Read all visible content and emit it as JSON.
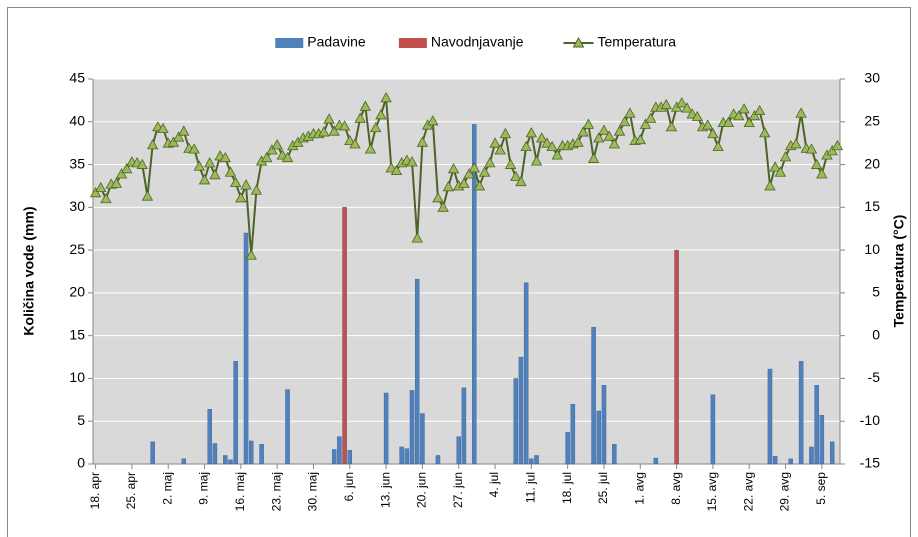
{
  "chart_data": {
    "type": "bar",
    "categories": [
      "18. apr",
      null,
      null,
      null,
      null,
      null,
      null,
      "25. apr",
      null,
      null,
      null,
      null,
      null,
      null,
      "2. maj",
      null,
      null,
      null,
      null,
      null,
      null,
      "9. maj",
      null,
      null,
      null,
      null,
      null,
      null,
      "16. maj",
      null,
      null,
      null,
      null,
      null,
      null,
      "23. maj",
      null,
      null,
      null,
      null,
      null,
      null,
      "30. maj",
      null,
      null,
      null,
      null,
      null,
      null,
      "6. jun",
      null,
      null,
      null,
      null,
      null,
      null,
      "13. jun",
      null,
      null,
      null,
      null,
      null,
      null,
      "20. jun",
      null,
      null,
      null,
      null,
      null,
      null,
      "27. jun",
      null,
      null,
      null,
      null,
      null,
      null,
      "4. jul",
      null,
      null,
      null,
      null,
      null,
      null,
      "11. jul",
      null,
      null,
      null,
      null,
      null,
      null,
      "18. jul",
      null,
      null,
      null,
      null,
      null,
      null,
      "25. jul",
      null,
      null,
      null,
      null,
      null,
      null,
      "1. avg",
      null,
      null,
      null,
      null,
      null,
      null,
      "8. avg",
      null,
      null,
      null,
      null,
      null,
      null,
      "15. avg",
      null,
      null,
      null,
      null,
      null,
      null,
      "22. avg",
      null,
      null,
      null,
      null,
      null,
      null,
      "29. avg",
      null,
      null,
      null,
      null,
      null,
      null,
      "5. sep",
      null,
      null,
      null
    ],
    "series": [
      {
        "name": "Padavine",
        "type": "bar",
        "color": "#4f81bd",
        "values": [
          null,
          null,
          null,
          null,
          null,
          null,
          null,
          null,
          null,
          null,
          null,
          2.6,
          null,
          null,
          null,
          null,
          null,
          0.6,
          null,
          null,
          null,
          null,
          6.4,
          2.4,
          null,
          1.0,
          0.5,
          12,
          null,
          27,
          2.7,
          null,
          2.3,
          null,
          null,
          null,
          null,
          8.7,
          null,
          null,
          null,
          null,
          null,
          null,
          null,
          null,
          1.7,
          3.2,
          null,
          1.6,
          null,
          null,
          null,
          null,
          null,
          null,
          8.3,
          null,
          null,
          2.0,
          1.8,
          8.6,
          21.6,
          5.9,
          null,
          null,
          1.0,
          null,
          null,
          null,
          3.2,
          8.9,
          null,
          39.7,
          null,
          null,
          null,
          null,
          null,
          null,
          null,
          10,
          12.5,
          21.2,
          0.6,
          1.0,
          null,
          null,
          null,
          null,
          null,
          3.7,
          7.0,
          null,
          null,
          null,
          16,
          6.2,
          9.2,
          null,
          2.3,
          null,
          null,
          null,
          null,
          null,
          null,
          null,
          0.7,
          null,
          null,
          null,
          null,
          null,
          null,
          null,
          null,
          null,
          null,
          8.1,
          null,
          null,
          null,
          null,
          null,
          null,
          null,
          null,
          null,
          null,
          11.1,
          0.9,
          null,
          null,
          0.6,
          null,
          12,
          null,
          2.0,
          9.2,
          5.7,
          null,
          2.6,
          null
        ]
      },
      {
        "name": "Navodnjavanje",
        "type": "bar",
        "color": "#c0504d",
        "values": [
          null,
          null,
          null,
          null,
          null,
          null,
          null,
          null,
          null,
          null,
          null,
          null,
          null,
          null,
          null,
          null,
          null,
          null,
          null,
          null,
          null,
          null,
          null,
          null,
          null,
          null,
          null,
          null,
          null,
          null,
          null,
          null,
          null,
          null,
          null,
          null,
          null,
          null,
          null,
          null,
          null,
          null,
          null,
          null,
          null,
          null,
          null,
          null,
          30,
          null,
          null,
          null,
          null,
          null,
          null,
          null,
          null,
          null,
          null,
          null,
          null,
          null,
          null,
          null,
          null,
          null,
          null,
          null,
          null,
          null,
          null,
          null,
          null,
          null,
          null,
          null,
          null,
          null,
          null,
          null,
          null,
          null,
          null,
          null,
          null,
          null,
          null,
          null,
          null,
          null,
          null,
          null,
          null,
          null,
          null,
          null,
          null,
          null,
          null,
          null,
          null,
          null,
          null,
          null,
          null,
          null,
          null,
          null,
          null,
          null,
          null,
          null,
          25,
          null,
          null,
          null,
          null,
          null,
          null,
          null,
          null,
          null,
          null,
          null,
          null,
          null,
          null,
          null,
          null,
          null,
          null,
          null,
          null,
          null,
          null,
          null,
          null,
          null,
          null,
          null,
          null,
          null,
          null,
          null
        ]
      },
      {
        "name": "Temperatura",
        "type": "line",
        "axis": "y2",
        "color": "#4f6228",
        "marker_color": "#9bbb59",
        "values": [
          16.7,
          17.3,
          16,
          17.7,
          17.8,
          18.9,
          19.5,
          20.3,
          20.2,
          20,
          16.3,
          22.3,
          24.4,
          24.2,
          22.5,
          22.6,
          23.2,
          23.9,
          21.9,
          21.8,
          19.8,
          18.2,
          20.2,
          18.8,
          21,
          20.8,
          19.1,
          17.9,
          16.1,
          17.6,
          9.4,
          17,
          20.4,
          20.8,
          21.7,
          22.3,
          21.1,
          20.8,
          22.2,
          22.6,
          23.1,
          23.3,
          23.6,
          23.6,
          23.8,
          25.3,
          23.9,
          24.6,
          24.5,
          22.8,
          22.4,
          25.4,
          26.8,
          21.8,
          24.3,
          25.8,
          27.8,
          19.6,
          19.3,
          20.2,
          20.5,
          20.3,
          11.4,
          22.6,
          24.6,
          25.1,
          16.1,
          15,
          17.4,
          19.5,
          17.5,
          17.8,
          18.9,
          19.6,
          17.5,
          19.1,
          20.2,
          22.5,
          21.7,
          23.6,
          20,
          18.6,
          18,
          22.1,
          23.7,
          20.4,
          23.1,
          22.5,
          22.1,
          21.1,
          22.2,
          22.2,
          22.4,
          22.6,
          23.8,
          24.7,
          20.7,
          23.1,
          24,
          23.3,
          22.4,
          23.9,
          25,
          26,
          22.8,
          22.9,
          24.7,
          25.4,
          26.7,
          26.7,
          27,
          24.4,
          26.7,
          27.2,
          26.6,
          25.9,
          25.6,
          24.4,
          24.6,
          23.6,
          22.1,
          24.9,
          24.9,
          25.9,
          25.7,
          26.5,
          24.9,
          25.7,
          26.3,
          23.7,
          17.5,
          19.7,
          19.1,
          20.9,
          22.2,
          22.4,
          26,
          21.9,
          21.8,
          20,
          18.9,
          21.1,
          21.6,
          22.2
        ]
      }
    ],
    "y_label": "Količina vode (mm)",
    "y2_label": "Temperatura (°C)",
    "ylim": [
      0,
      45
    ],
    "yticks": [
      0,
      5,
      10,
      15,
      20,
      25,
      30,
      35,
      40,
      45
    ],
    "y2lim": [
      -15,
      30
    ],
    "y2ticks": [
      -15,
      -10,
      -5,
      0,
      5,
      10,
      15,
      20,
      25,
      30
    ],
    "grid": true,
    "legend": "top"
  }
}
